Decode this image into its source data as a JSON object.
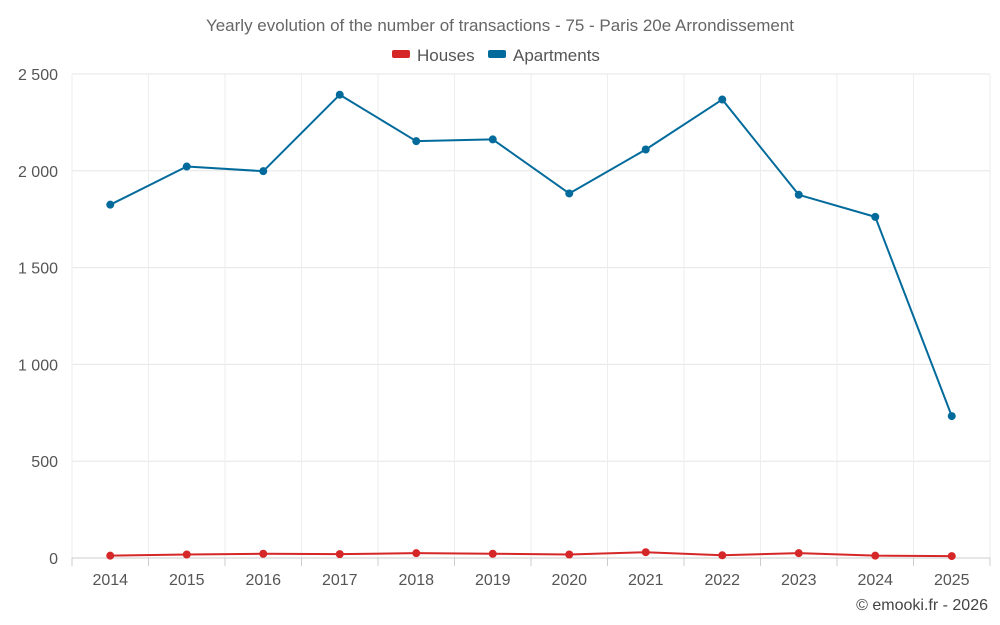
{
  "chart_data": {
    "type": "line",
    "title": "Yearly evolution of the number of transactions - 75 - Paris 20e Arrondissement",
    "xlabel": "",
    "ylabel": "",
    "categories": [
      "2014",
      "2015",
      "2016",
      "2017",
      "2018",
      "2019",
      "2020",
      "2021",
      "2022",
      "2023",
      "2024",
      "2025"
    ],
    "ylim": [
      0,
      2500
    ],
    "yticks": [
      0,
      500,
      1000,
      1500,
      2000,
      2500
    ],
    "ytick_labels": [
      "0",
      "500",
      "1 000",
      "1 500",
      "2 000",
      "2 500"
    ],
    "grid": true,
    "legend_position": "top-center",
    "series": [
      {
        "name": "Houses",
        "color": "#d62728",
        "values": [
          12,
          18,
          22,
          20,
          25,
          22,
          18,
          30,
          14,
          25,
          12,
          10
        ]
      },
      {
        "name": "Apartments",
        "color": "#036b9c",
        "values": [
          1825,
          2022,
          1998,
          2393,
          2153,
          2162,
          1883,
          2110,
          2368,
          1876,
          1762,
          733
        ]
      }
    ]
  },
  "credit": "© emooki.fr - 2026"
}
